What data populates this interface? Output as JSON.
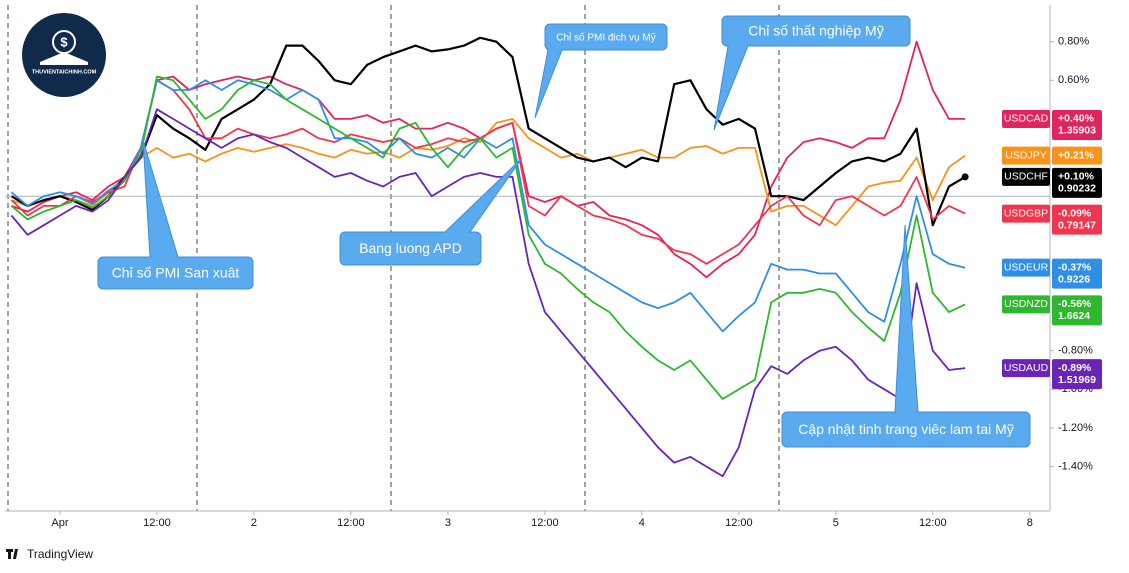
{
  "chart_data": {
    "type": "line",
    "logo": "THUVIENTAICHINH.COM",
    "footer": "TradingView",
    "x": [
      -6,
      -4,
      -2,
      0,
      2,
      4,
      6,
      8,
      10,
      12,
      14,
      16,
      18,
      20,
      22,
      24,
      26,
      28,
      30,
      32,
      34,
      36,
      38,
      40,
      42,
      44,
      46,
      48,
      50,
      52,
      54,
      56,
      58,
      60,
      62,
      64,
      66,
      68,
      70,
      72,
      74,
      76,
      78,
      80,
      82,
      84,
      86,
      88,
      90,
      92,
      94,
      96,
      98,
      100,
      102,
      104,
      106,
      108,
      110,
      112
    ],
    "xlim": [
      -6.8,
      122.5
    ],
    "xticks": [
      {
        "value": 0,
        "label": "Apr"
      },
      {
        "value": 12,
        "label": "12:00"
      },
      {
        "value": 24,
        "label": "2"
      },
      {
        "value": 36,
        "label": "12:00"
      },
      {
        "value": 48,
        "label": "3"
      },
      {
        "value": 60,
        "label": "12:00"
      },
      {
        "value": 72,
        "label": "4"
      },
      {
        "value": 84,
        "label": "12:00"
      },
      {
        "value": 96,
        "label": "5"
      },
      {
        "value": 108,
        "label": "12:00"
      },
      {
        "value": 120,
        "label": "8"
      }
    ],
    "ylim": [
      -1.63,
      0.99
    ],
    "yticks": [
      {
        "value": 0.8,
        "label": "0.80%"
      },
      {
        "value": 0.6,
        "label": "0.60%"
      },
      {
        "value": -0.8,
        "label": "-0.80%"
      },
      {
        "value": -1.0,
        "label": "-1.00%"
      },
      {
        "value": -1.2,
        "label": "-1.20%"
      },
      {
        "value": -1.4,
        "label": "-1.40%"
      }
    ],
    "series": [
      {
        "name": "USDCAD",
        "color": "#e0245e",
        "change": 0.4,
        "change_label": "+0.40%",
        "price": 1.35903,
        "values": [
          -0.05,
          -0.08,
          -0.03,
          0,
          0.02,
          -0.02,
          0.05,
          0.1,
          0.25,
          0.6,
          0.62,
          0.55,
          0.58,
          0.6,
          0.62,
          0.6,
          0.62,
          0.58,
          0.55,
          0.5,
          0.4,
          0.4,
          0.42,
          0.38,
          0.4,
          0.35,
          0.35,
          0.38,
          0.35,
          0.3,
          0.35,
          0.38,
          0,
          -0.03,
          0,
          -0.05,
          -0.03,
          -0.1,
          -0.12,
          -0.15,
          -0.2,
          -0.3,
          -0.35,
          -0.42,
          -0.35,
          -0.3,
          -0.2,
          0.05,
          0.2,
          0.28,
          0.3,
          0.28,
          0.25,
          0.3,
          0.3,
          0.5,
          0.8,
          0.55,
          0.4,
          0.4
        ]
      },
      {
        "name": "USDJPY",
        "color": "#f7931a",
        "change": 0.21,
        "change_label": "+0.21%",
        "values": [
          -0.02,
          -0.05,
          -0.02,
          0,
          -0.02,
          -0.05,
          0.02,
          0.1,
          0.2,
          0.25,
          0.2,
          0.22,
          0.18,
          0.22,
          0.25,
          0.23,
          0.25,
          0.27,
          0.25,
          0.22,
          0.2,
          0.24,
          0.22,
          0.23,
          0.2,
          0.25,
          0.24,
          0.26,
          0.3,
          0.28,
          0.38,
          0.4,
          0.3,
          0.25,
          0.2,
          0.22,
          0.18,
          0.2,
          0.22,
          0.24,
          0.2,
          0.2,
          0.25,
          0.26,
          0.22,
          0.25,
          0.25,
          -0.08,
          -0.05,
          -0.05,
          -0.1,
          -0.15,
          -0.05,
          0.05,
          0.07,
          0.08,
          0.2,
          -0.02,
          0.15,
          0.21
        ]
      },
      {
        "name": "USDCHF",
        "color": "#000000",
        "change": 0.1,
        "change_label": "+0.10%",
        "price": 0.90232,
        "values": [
          0,
          -0.05,
          -0.02,
          0,
          -0.03,
          -0.07,
          0,
          0.1,
          0.2,
          0.42,
          0.35,
          0.3,
          0.24,
          0.4,
          0.45,
          0.5,
          0.58,
          0.78,
          0.78,
          0.7,
          0.6,
          0.58,
          0.68,
          0.72,
          0.75,
          0.78,
          0.75,
          0.76,
          0.78,
          0.82,
          0.8,
          0.72,
          0.35,
          0.3,
          0.25,
          0.2,
          0.18,
          0.2,
          0.15,
          0.2,
          0.18,
          0.58,
          0.6,
          0.45,
          0.37,
          0.4,
          0.35,
          0,
          0,
          -0.02,
          0.05,
          0.12,
          0.18,
          0.2,
          0.18,
          0.22,
          0.35,
          -0.15,
          0.05,
          0.1
        ]
      },
      {
        "name": "USDGBP",
        "color": "#f0364f",
        "change": -0.09,
        "change_label": "-0.09%",
        "price": 0.79147,
        "values": [
          -0.02,
          -0.1,
          -0.05,
          -0.05,
          0,
          -0.03,
          0.02,
          0.05,
          0.25,
          0.6,
          0.55,
          0.45,
          0.3,
          0.3,
          0.35,
          0.32,
          0.3,
          0.32,
          0.35,
          0.3,
          0.28,
          0.32,
          0.3,
          0.28,
          0.3,
          0.25,
          0.27,
          0.3,
          0.28,
          0.3,
          0.35,
          0.38,
          -0.05,
          -0.1,
          0,
          -0.05,
          -0.1,
          -0.12,
          -0.15,
          -0.2,
          -0.22,
          -0.28,
          -0.3,
          -0.35,
          -0.3,
          -0.25,
          -0.15,
          -0.05,
          0,
          -0.1,
          -0.15,
          -0.02,
          0,
          -0.05,
          -0.1,
          -0.05,
          0.1,
          -0.12,
          -0.05,
          -0.09
        ]
      },
      {
        "name": "USDEUR",
        "color": "#2f8fe8",
        "change": -0.37,
        "change_label": "-0.37%",
        "price": 0.9226,
        "values": [
          0.02,
          -0.05,
          0,
          0.02,
          0,
          -0.04,
          0.03,
          0.08,
          0.25,
          0.6,
          0.55,
          0.55,
          0.6,
          0.55,
          0.6,
          0.58,
          0.55,
          0.5,
          0.55,
          0.5,
          0.3,
          0.3,
          0.28,
          0.22,
          0.3,
          0.22,
          0.2,
          0.25,
          0.2,
          0.3,
          0.25,
          0.3,
          -0.15,
          -0.25,
          -0.3,
          -0.35,
          -0.4,
          -0.45,
          -0.5,
          -0.55,
          -0.58,
          -0.55,
          -0.5,
          -0.6,
          -0.7,
          -0.62,
          -0.55,
          -0.35,
          -0.38,
          -0.38,
          -0.4,
          -0.4,
          -0.5,
          -0.6,
          -0.65,
          -0.35,
          0,
          -0.3,
          -0.35,
          -0.37
        ]
      },
      {
        "name": "USDNZD",
        "color": "#2eb82e",
        "change": -0.56,
        "change_label": "-0.56%",
        "price": 1.6624,
        "values": [
          -0.05,
          -0.12,
          -0.08,
          -0.05,
          -0.02,
          -0.06,
          0,
          0.08,
          0.22,
          0.62,
          0.6,
          0.5,
          0.4,
          0.45,
          0.55,
          0.6,
          0.58,
          0.5,
          0.45,
          0.4,
          0.35,
          0.3,
          0.25,
          0.2,
          0.35,
          0.38,
          0.25,
          0.15,
          0.25,
          0.3,
          0.2,
          0.25,
          -0.2,
          -0.35,
          -0.4,
          -0.48,
          -0.55,
          -0.6,
          -0.7,
          -0.78,
          -0.85,
          -0.9,
          -0.85,
          -0.95,
          -1.05,
          -1,
          -0.95,
          -0.55,
          -0.5,
          -0.5,
          -0.48,
          -0.5,
          -0.6,
          -0.68,
          -0.75,
          -0.5,
          -0.1,
          -0.5,
          -0.6,
          -0.56
        ]
      },
      {
        "name": "USDAUD",
        "color": "#6a24b8",
        "change": -0.89,
        "change_label": "-0.89%",
        "price": 1.51969,
        "values": [
          -0.1,
          -0.2,
          -0.15,
          -0.1,
          -0.05,
          -0.08,
          -0.02,
          0.1,
          0.2,
          0.45,
          0.4,
          0.35,
          0.3,
          0.25,
          0.3,
          0.32,
          0.28,
          0.25,
          0.2,
          0.15,
          0.1,
          0.12,
          0.08,
          0.05,
          0.1,
          0.12,
          0,
          0.05,
          0.1,
          0.12,
          0.1,
          0.1,
          -0.35,
          -0.6,
          -0.7,
          -0.8,
          -0.9,
          -1,
          -1.1,
          -1.2,
          -1.3,
          -1.38,
          -1.35,
          -1.4,
          -1.45,
          -1.3,
          -1,
          -0.88,
          -0.92,
          -0.85,
          -0.8,
          -0.78,
          -0.85,
          -0.95,
          -1,
          -1.05,
          -0.45,
          -0.8,
          -0.9,
          -0.89
        ]
      }
    ],
    "annotations": [
      {
        "text": "Chỉ số PMI đich vụ Mỹ"
      },
      {
        "text": "Chỉ số thất nghiệp Mỹ"
      },
      {
        "text": "Chỉ số PMI San xuât"
      },
      {
        "text": "Bang luong APD"
      },
      {
        "text": "Cập nhật tinh trang viêc lam tai Mỹ"
      }
    ]
  }
}
